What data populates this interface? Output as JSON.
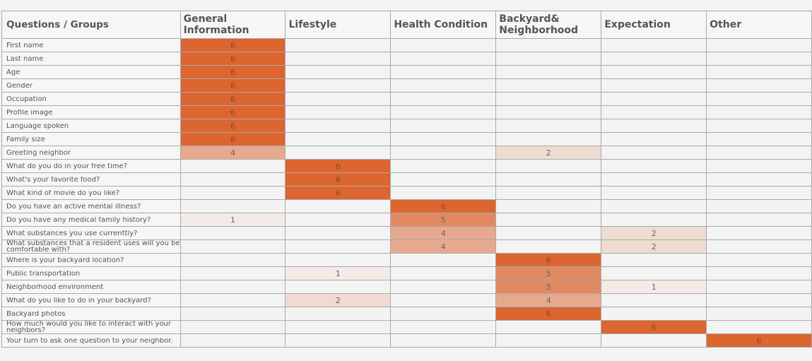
{
  "chart_data": {
    "type": "heatmap",
    "corner_label": "Questions / Groups",
    "columns": [
      [
        "General",
        "Information"
      ],
      [
        "Lifestyle"
      ],
      [
        "Health Condition"
      ],
      [
        "Backyard&",
        "Neighborhood"
      ],
      [
        "Expectation"
      ],
      [
        "Other"
      ]
    ],
    "rows": [
      {
        "label": [
          "First name"
        ],
        "values": [
          6,
          null,
          null,
          null,
          null,
          null
        ]
      },
      {
        "label": [
          "Last name"
        ],
        "values": [
          6,
          null,
          null,
          null,
          null,
          null
        ]
      },
      {
        "label": [
          "Age"
        ],
        "values": [
          6,
          null,
          null,
          null,
          null,
          null
        ]
      },
      {
        "label": [
          "Gender"
        ],
        "values": [
          6,
          null,
          null,
          null,
          null,
          null
        ]
      },
      {
        "label": [
          "Occupation"
        ],
        "values": [
          6,
          null,
          null,
          null,
          null,
          null
        ]
      },
      {
        "label": [
          "Profile image"
        ],
        "values": [
          6,
          null,
          null,
          null,
          null,
          null
        ]
      },
      {
        "label": [
          "Language spoken"
        ],
        "values": [
          6,
          null,
          null,
          null,
          null,
          null
        ]
      },
      {
        "label": [
          "Family size"
        ],
        "values": [
          6,
          null,
          null,
          null,
          null,
          null
        ]
      },
      {
        "label": [
          "Greeting neighbor"
        ],
        "values": [
          4,
          null,
          null,
          2,
          null,
          null
        ]
      },
      {
        "label": [
          "What do you do in your free time?"
        ],
        "values": [
          null,
          6,
          null,
          null,
          null,
          null
        ]
      },
      {
        "label": [
          "What's your favorite food?"
        ],
        "values": [
          null,
          6,
          null,
          null,
          null,
          null
        ]
      },
      {
        "label": [
          "What kind of movie do you like?"
        ],
        "values": [
          null,
          6,
          null,
          null,
          null,
          null
        ]
      },
      {
        "label": [
          "Do you have an active mental illness?"
        ],
        "values": [
          null,
          null,
          6,
          null,
          null,
          null
        ]
      },
      {
        "label": [
          "Do you have any medical family history?"
        ],
        "values": [
          1,
          null,
          5,
          null,
          null,
          null
        ]
      },
      {
        "label": [
          "What substances you use currenttly?"
        ],
        "values": [
          null,
          null,
          4,
          null,
          2,
          null
        ]
      },
      {
        "label": [
          "What substances that a resident uses will you be",
          "comfortable with?"
        ],
        "values": [
          null,
          null,
          4,
          null,
          2,
          null
        ]
      },
      {
        "label": [
          "Where is your backyard location?"
        ],
        "values": [
          null,
          null,
          null,
          6,
          null,
          null
        ]
      },
      {
        "label": [
          "Public transportation"
        ],
        "values": [
          null,
          1,
          null,
          5,
          null,
          null
        ]
      },
      {
        "label": [
          "Neighborhood environment"
        ],
        "values": [
          null,
          null,
          null,
          5,
          1,
          null
        ]
      },
      {
        "label": [
          "What do you like to do in your backyard?"
        ],
        "values": [
          null,
          2,
          null,
          4,
          null,
          null
        ]
      },
      {
        "label": [
          "Backyard photos"
        ],
        "values": [
          null,
          null,
          null,
          6,
          null,
          null
        ]
      },
      {
        "label": [
          "How much would you like to interact with your",
          "neighbors?"
        ],
        "values": [
          null,
          null,
          null,
          null,
          6,
          null
        ]
      },
      {
        "label": [
          "Your turn to ask one question to your neighbor."
        ],
        "values": [
          null,
          null,
          null,
          null,
          null,
          6
        ]
      }
    ],
    "max_value": 6,
    "colors": {
      "high": "#dc6530",
      "empty": "#f3f3f3",
      "border": "#a9a9a9"
    }
  }
}
